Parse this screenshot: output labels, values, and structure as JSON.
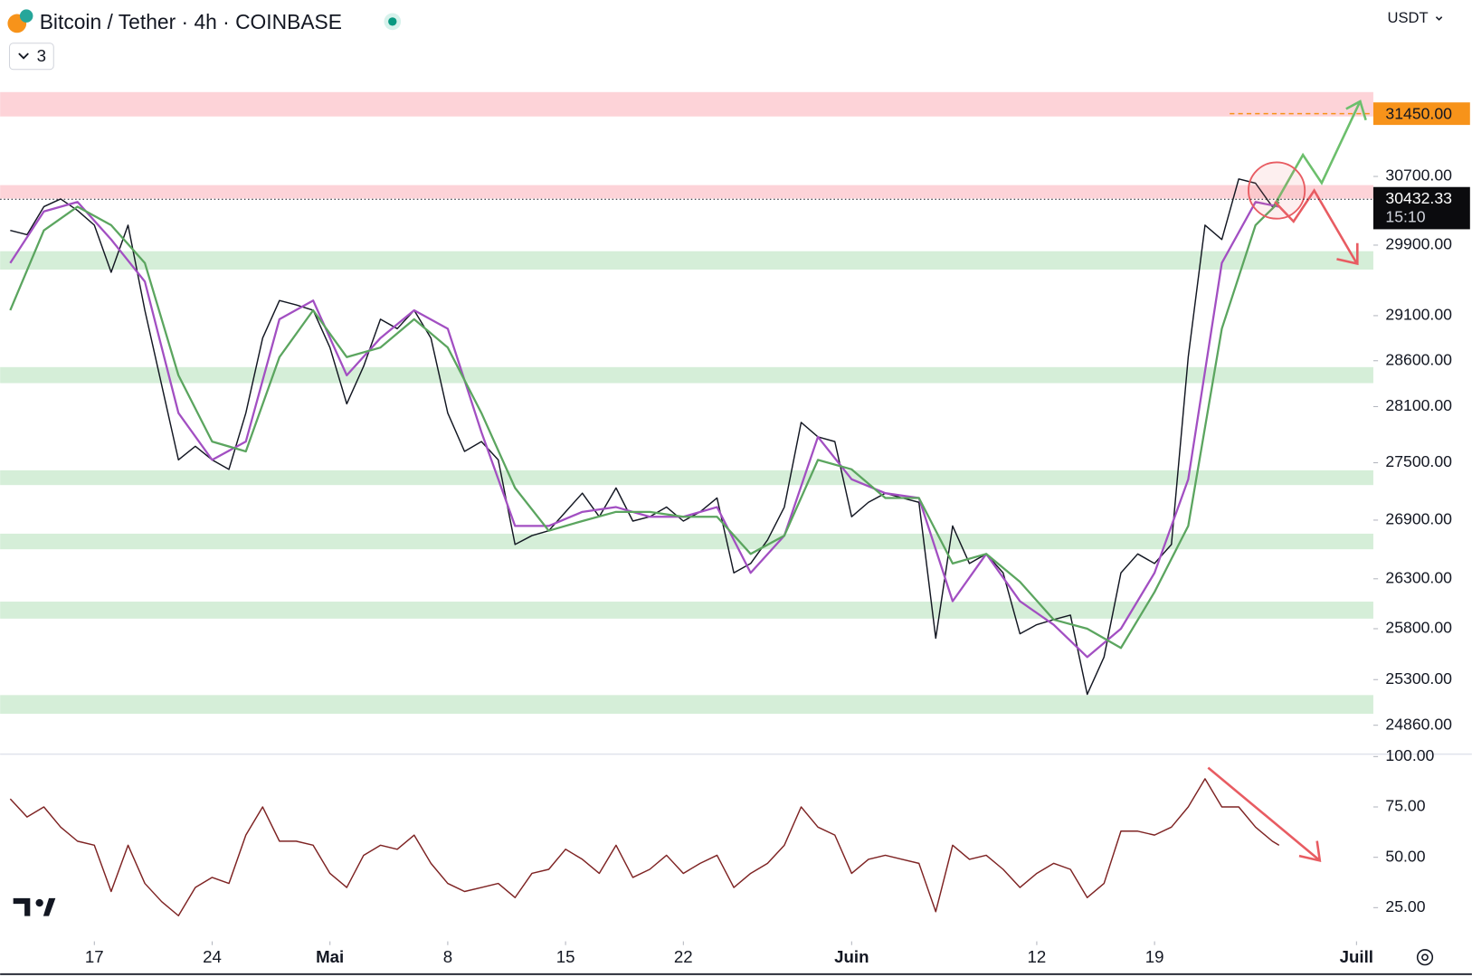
{
  "chart_data": [
    {
      "type": "line",
      "title": "Bitcoin / Tether · 4h · COINBASE",
      "currency": "USDT",
      "indicators_count": 3,
      "x": [
        12,
        13,
        14,
        15,
        16,
        17,
        18,
        19,
        20,
        21,
        22,
        23,
        24,
        25,
        26,
        27,
        28,
        29,
        30,
        31,
        32,
        33,
        34,
        35,
        36,
        37,
        38,
        39,
        40,
        41,
        42,
        43,
        44,
        45,
        46,
        47,
        48,
        49,
        50,
        51,
        52,
        53,
        54,
        55,
        56,
        57,
        58,
        59,
        60,
        61,
        62,
        63,
        64,
        65,
        66,
        67,
        68,
        69,
        70,
        71,
        72,
        73,
        74,
        75,
        76,
        77,
        78,
        79,
        80,
        81,
        82,
        83,
        84,
        85,
        86,
        87,
        87.4
      ],
      "xlim": [
        11.4,
        93
      ],
      "xticks": [
        17,
        24,
        {
          "value": 31,
          "label": "Mai"
        },
        {
          "value": 38,
          "label": "8"
        },
        {
          "value": 45,
          "label": "15"
        },
        {
          "value": 52,
          "label": "22"
        },
        {
          "value": 62,
          "label": "Juin"
        },
        {
          "value": 73,
          "label": "12"
        },
        {
          "value": 80,
          "label": "19"
        },
        {
          "value": 92,
          "label": "Juill"
        }
      ],
      "ylim": [
        24590,
        32855
      ],
      "yscale": "log",
      "yticks": [
        {
          "value": 30700,
          "label": "30700.00"
        },
        {
          "value": 29900,
          "label": "29900.00"
        },
        {
          "value": 29100,
          "label": "29100.00"
        },
        {
          "value": 28600,
          "label": "28600.00"
        },
        {
          "value": 28100,
          "label": "28100.00"
        },
        {
          "value": 27500,
          "label": "27500.00"
        },
        {
          "value": 26900,
          "label": "26900.00"
        },
        {
          "value": 26300,
          "label": "26300.00"
        },
        {
          "value": 25800,
          "label": "25800.00"
        },
        {
          "value": 25300,
          "label": "25300.00"
        },
        {
          "value": 24860,
          "label": "24860.00"
        }
      ],
      "series": [
        {
          "color": "#131722",
          "values": [
            30070,
            30020,
            30345,
            30435,
            30300,
            30130,
            29590,
            30130,
            29160,
            28335,
            27530,
            27675,
            27530,
            27430,
            28030,
            28850,
            29270,
            29220,
            29160,
            28745,
            28130,
            28540,
            29060,
            28955,
            29160,
            28850,
            28030,
            27620,
            27725,
            27530,
            26650,
            26740,
            26790,
            26985,
            27180,
            26935,
            27235,
            26890,
            26935,
            27035,
            26890,
            26985,
            27130,
            26360,
            26455,
            26695,
            27035,
            27930,
            27775,
            27725,
            26935,
            27085,
            27180,
            27130,
            27085,
            25705,
            26840,
            26455,
            26553,
            26360,
            25750,
            25840,
            25890,
            25935,
            25157,
            25520,
            26360,
            26553,
            26455,
            26650,
            28640,
            30130,
            29965,
            30670,
            30620,
            30345,
            30432.33
          ]
        },
        {
          "color": "#a24fc2",
          "x": [
            12,
            14,
            16,
            18,
            20,
            22,
            24,
            26,
            28,
            30,
            32,
            34,
            36,
            38,
            40,
            42,
            44,
            46,
            48,
            50,
            52,
            54,
            56,
            58,
            60,
            62,
            64,
            66,
            68,
            70,
            72,
            74,
            76,
            78,
            80,
            82,
            84,
            86,
            87.4
          ],
          "values": [
            29695,
            30290,
            30400,
            29965,
            29484,
            28030,
            27530,
            27725,
            29060,
            29270,
            28440,
            28850,
            29160,
            28955,
            27825,
            26840,
            26840,
            26985,
            27035,
            26935,
            26935,
            27035,
            26360,
            26740,
            27775,
            27325,
            27180,
            27130,
            26074,
            26553,
            26074,
            25840,
            25520,
            25800,
            26360,
            27325,
            29695,
            30400,
            30345
          ]
        },
        {
          "color": "#5ba55f",
          "x": [
            12,
            14,
            16,
            18,
            20,
            22,
            24,
            26,
            28,
            30,
            32,
            34,
            36,
            38,
            40,
            42,
            44,
            46,
            48,
            50,
            52,
            54,
            56,
            58,
            60,
            62,
            64,
            66,
            68,
            70,
            72,
            74,
            76,
            78,
            80,
            82,
            84,
            86,
            87.4
          ],
          "values": [
            29160,
            30070,
            30345,
            30130,
            29695,
            28440,
            27725,
            27620,
            28640,
            29160,
            28640,
            28745,
            29060,
            28745,
            28030,
            27235,
            26790,
            26890,
            26985,
            26985,
            26935,
            26935,
            26553,
            26740,
            27530,
            27430,
            27130,
            27130,
            26455,
            26553,
            26270,
            25890,
            25800,
            25610,
            26166,
            26840,
            28955,
            30130,
            30400
          ]
        }
      ],
      "zones": [
        {
          "color": "#fdd3d8",
          "range": [
            31416,
            31712
          ]
        },
        {
          "color": "#fdd3d8",
          "range": [
            30440,
            30598
          ]
        },
        {
          "color": "#d5eed8",
          "range": [
            29620,
            29830
          ]
        },
        {
          "color": "#d5eed8",
          "range": [
            28355,
            28530
          ]
        },
        {
          "color": "#d5eed8",
          "range": [
            27265,
            27420
          ]
        },
        {
          "color": "#d5eed8",
          "range": [
            26600,
            26760
          ]
        },
        {
          "color": "#d5eed8",
          "range": [
            25900,
            26070
          ]
        },
        {
          "color": "#d5eed8",
          "range": [
            24970,
            25150
          ]
        }
      ],
      "price_line": {
        "value": 31450,
        "label": "31450.00",
        "color": "#f7931a"
      },
      "last_price": {
        "value": 30432.33,
        "label": "30432.33",
        "countdown": "15:10"
      }
    },
    {
      "type": "line",
      "x": [
        12,
        13,
        14,
        15,
        16,
        17,
        18,
        19,
        20,
        21,
        22,
        23,
        24,
        25,
        26,
        27,
        28,
        29,
        30,
        31,
        32,
        33,
        34,
        35,
        36,
        37,
        38,
        39,
        40,
        41,
        42,
        43,
        44,
        45,
        46,
        47,
        48,
        49,
        50,
        51,
        52,
        53,
        54,
        55,
        56,
        57,
        58,
        59,
        60,
        61,
        62,
        63,
        64,
        65,
        66,
        67,
        68,
        69,
        70,
        71,
        72,
        73,
        74,
        75,
        76,
        77,
        78,
        79,
        80,
        81,
        82,
        83,
        84,
        85,
        86,
        87,
        87.4
      ],
      "xlim": [
        11.4,
        93
      ],
      "ylim": [
        12,
        101
      ],
      "yticks": [
        {
          "value": 100,
          "label": "100.00"
        },
        {
          "value": 75,
          "label": "75.00"
        },
        {
          "value": 50,
          "label": "50.00"
        },
        {
          "value": 25,
          "label": "25.00"
        }
      ],
      "color": "#7e2323",
      "values": [
        79,
        70,
        75,
        65,
        58,
        56,
        33,
        56,
        37,
        28,
        21,
        35,
        40,
        37,
        61,
        75,
        58,
        58,
        56,
        42,
        35,
        51,
        56,
        54,
        61,
        47,
        37,
        33,
        35,
        37,
        30,
        42,
        44,
        54,
        49,
        42,
        56,
        40,
        44,
        51,
        42,
        47,
        51,
        35,
        42,
        47,
        56,
        75,
        65,
        61,
        42,
        49,
        51,
        49,
        47,
        23,
        56,
        49,
        51,
        44,
        35,
        42,
        47,
        44,
        30,
        37,
        63,
        63,
        61,
        65,
        75,
        89,
        75,
        75,
        65,
        58,
        56
      ]
    }
  ]
}
